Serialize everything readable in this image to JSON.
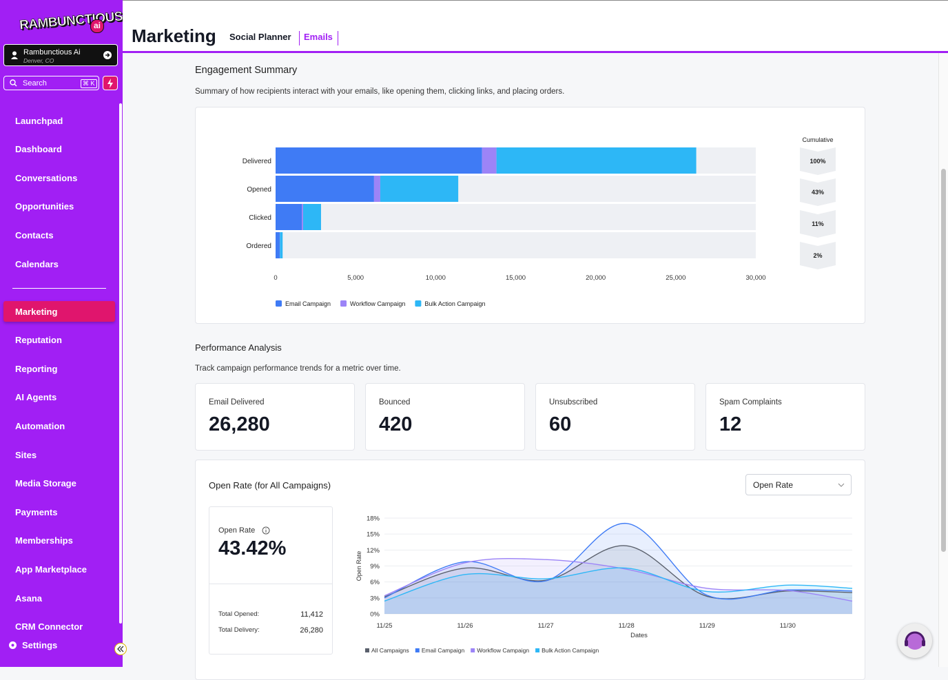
{
  "sidebar": {
    "brand": "RAMBUNCTIOUS",
    "brand_badge": "ai",
    "account": {
      "name": "Rambunctious Ai",
      "location": "Denver, CO"
    },
    "search": "Search",
    "shortcut": "⌘ K",
    "nav": [
      {
        "label": "Launchpad"
      },
      {
        "label": "Dashboard"
      },
      {
        "label": "Conversations"
      },
      {
        "label": "Opportunities"
      },
      {
        "label": "Contacts"
      },
      {
        "label": "Calendars"
      },
      {
        "label": "Marketing",
        "selected": true
      },
      {
        "label": "Reputation"
      },
      {
        "label": "Reporting"
      },
      {
        "label": "AI Agents"
      },
      {
        "label": "Automation"
      },
      {
        "label": "Sites"
      },
      {
        "label": "Media Storage"
      },
      {
        "label": "Payments"
      },
      {
        "label": "Memberships"
      },
      {
        "label": "App Marketplace"
      },
      {
        "label": "Asana"
      },
      {
        "label": "CRM Connector"
      }
    ],
    "footer": "Settings"
  },
  "header": {
    "title": "Marketing",
    "tabs": [
      {
        "label": "Social Planner"
      },
      {
        "label": "Emails",
        "selected": true
      }
    ]
  },
  "engagement": {
    "title": "Engagement Summary",
    "description": "Summary of how recipients interact with your emails, like opening them, clicking links, and placing orders.",
    "chart_data": {
      "type": "bar",
      "orientation": "horizontal",
      "stacked": true,
      "categories": [
        "Delivered",
        "Opened",
        "Clicked",
        "Ordered"
      ],
      "series": [
        {
          "name": "Email Campaign",
          "color": "#3f7bf5",
          "values": [
            12900,
            6150,
            1640,
            260
          ]
        },
        {
          "name": "Workflow Campaign",
          "color": "#9c84f7",
          "values": [
            900,
            390,
            80,
            10
          ]
        },
        {
          "name": "Bulk Action Campaign",
          "color": "#2db7f6",
          "values": [
            12480,
            4872,
            1120,
            170
          ]
        }
      ],
      "xlim": [
        0,
        30000
      ],
      "xticks": [
        0,
        {
          "value": 5000,
          "label": "5,000"
        },
        {
          "value": 10000,
          "label": "10,000"
        },
        {
          "value": 15000,
          "label": "15,000"
        },
        {
          "value": 20000,
          "label": "20,000"
        },
        {
          "value": 25000,
          "label": "25,000"
        },
        {
          "value": 30000,
          "label": "30,000"
        }
      ],
      "cumulative_title": "Cumulative",
      "cumulative_labels": [
        "100%",
        "43%",
        "11%",
        "2%"
      ]
    }
  },
  "performance": {
    "title": "Performance Analysis",
    "description": "Track campaign performance trends for a metric over time.",
    "stats": [
      {
        "label": "Email Delivered",
        "value": "26,280"
      },
      {
        "label": "Bounced",
        "value": "420"
      },
      {
        "label": "Unsubscribed",
        "value": "60"
      },
      {
        "label": "Spam Complaints",
        "value": "12"
      }
    ]
  },
  "open_rate": {
    "title": "Open Rate (for All Campaigns)",
    "select": "Open Rate",
    "summary": {
      "label": "Open Rate",
      "value": "43.42%",
      "rows": [
        {
          "label": "Total Opened:",
          "value": "11,412"
        },
        {
          "label": "Total Delivery:",
          "value": "26,280"
        }
      ]
    },
    "chart_data": {
      "type": "line",
      "x": [
        0,
        1,
        2,
        3,
        4,
        5,
        5.8
      ],
      "xlim": [
        0,
        5.8
      ],
      "xticks": [
        {
          "value": 0,
          "label": "11/25"
        },
        {
          "value": 1,
          "label": "11/26"
        },
        {
          "value": 2,
          "label": "11/27"
        },
        {
          "value": 3,
          "label": "11/28"
        },
        {
          "value": 4,
          "label": "11/29"
        },
        {
          "value": 5,
          "label": "11/30"
        }
      ],
      "ylim": [
        0,
        18
      ],
      "yticks": [
        {
          "value": 0,
          "label": "0%"
        },
        {
          "value": 3,
          "label": "3%"
        },
        {
          "value": 6,
          "label": "6%"
        },
        {
          "value": 9,
          "label": "9%"
        },
        {
          "value": 12,
          "label": "12%"
        },
        {
          "value": 15,
          "label": "15%"
        },
        {
          "value": 18,
          "label": "18%"
        }
      ],
      "xlabel": "Dates",
      "ylabel": "Open Rate",
      "grid": true,
      "series": [
        {
          "name": "All Campaigns",
          "color": "#5a606c",
          "values": [
            3.2,
            8.6,
            6.3,
            12.8,
            3.3,
            4.3,
            4.0
          ]
        },
        {
          "name": "Email Campaign",
          "color": "#3f7bf5",
          "values": [
            3.0,
            9.8,
            6.2,
            17.0,
            3.5,
            4.5,
            4.3
          ]
        },
        {
          "name": "Workflow Campaign",
          "color": "#9c84f7",
          "values": [
            3.4,
            9.6,
            10.2,
            8.4,
            4.8,
            4.4,
            2.4
          ]
        },
        {
          "name": "Bulk Action Campaign",
          "color": "#2db7f6",
          "values": [
            2.4,
            7.4,
            6.6,
            8.6,
            4.2,
            5.4,
            4.8
          ]
        }
      ]
    }
  }
}
